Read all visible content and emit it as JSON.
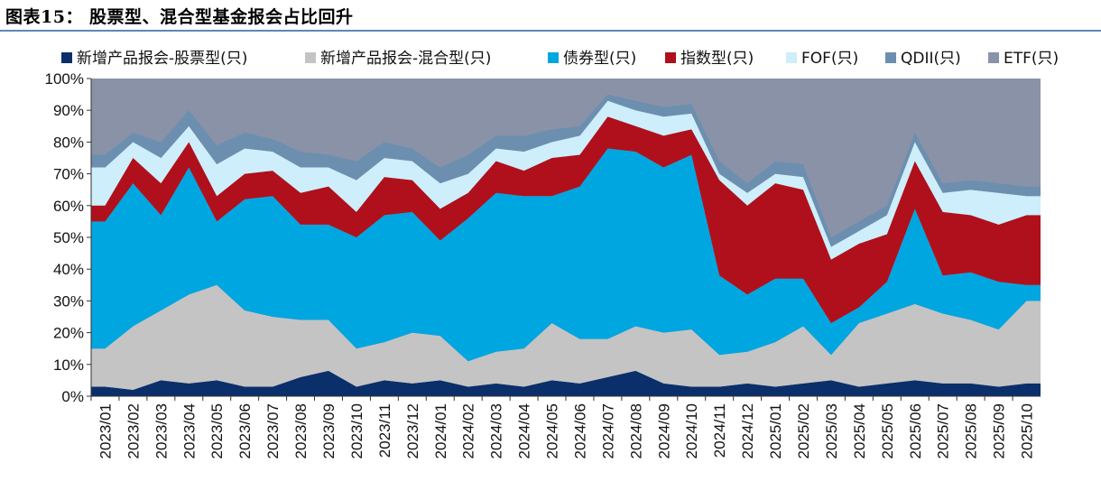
{
  "title": "图表15： 股票型、混合型基金报会占比回升",
  "chart_data": {
    "type": "area",
    "stacked": true,
    "percent": true,
    "title": "图表15： 股票型、混合型基金报会占比回升",
    "xlabel": "",
    "ylabel": "",
    "ylim": [
      0,
      100
    ],
    "yticks": [
      "0%",
      "10%",
      "20%",
      "30%",
      "40%",
      "50%",
      "60%",
      "70%",
      "80%",
      "90%",
      "100%"
    ],
    "month_labels": [
      "2023/01",
      "2023/02",
      "2023/03",
      "2023/04",
      "2023/05",
      "2023/06",
      "2023/07",
      "2023/08",
      "2023/09",
      "2023/10",
      "2023/11",
      "2023/12",
      "2024/01",
      "2024/02",
      "2024/03",
      "2024/04",
      "2024/05",
      "2024/06",
      "2024/07",
      "2024/08",
      "2024/09",
      "2024/10",
      "2024/11",
      "2024/12",
      "2025/01",
      "2025/02",
      "2025/03",
      "2025/04",
      "2025/05",
      "2025/06",
      "2025/07",
      "2025/08",
      "2025/09",
      "2025/10"
    ],
    "legend_position": "top",
    "colors": [
      "#0b2f6b",
      "#c4c4c4",
      "#00a6e0",
      "#b0101b",
      "#cdeefa",
      "#6c8fb0",
      "#8a92a8"
    ],
    "series": [
      {
        "name": "新增产品报会-股票型(只)",
        "values": [
          3,
          2,
          5,
          4,
          5,
          3,
          3,
          6,
          8,
          3,
          5,
          4,
          5,
          3,
          4,
          3,
          5,
          4,
          6,
          8,
          4,
          3,
          3,
          4,
          3,
          4,
          5,
          3,
          4,
          5,
          4,
          4,
          3,
          4
        ]
      },
      {
        "name": "新增产品报会-混合型(只)",
        "values": [
          12,
          20,
          22,
          28,
          30,
          24,
          22,
          18,
          16,
          12,
          12,
          16,
          14,
          8,
          10,
          12,
          18,
          14,
          12,
          14,
          16,
          18,
          10,
          10,
          14,
          18,
          8,
          20,
          22,
          24,
          22,
          20,
          18,
          26
        ]
      },
      {
        "name": "债券型(只)",
        "values": [
          40,
          45,
          30,
          40,
          20,
          35,
          38,
          30,
          30,
          35,
          40,
          38,
          30,
          45,
          50,
          48,
          40,
          48,
          60,
          55,
          52,
          55,
          25,
          18,
          20,
          15,
          10,
          5,
          10,
          30,
          12,
          15,
          15,
          5
        ]
      },
      {
        "name": "指数型(只)",
        "values": [
          5,
          8,
          10,
          8,
          8,
          8,
          8,
          10,
          12,
          8,
          12,
          10,
          10,
          8,
          10,
          8,
          12,
          10,
          10,
          8,
          10,
          8,
          30,
          28,
          30,
          28,
          20,
          20,
          15,
          15,
          20,
          18,
          18,
          22
        ]
      },
      {
        "name": "FOF(只)",
        "values": [
          12,
          5,
          8,
          5,
          10,
          8,
          6,
          8,
          6,
          10,
          6,
          6,
          8,
          6,
          4,
          6,
          5,
          6,
          5,
          5,
          6,
          5,
          2,
          4,
          3,
          4,
          4,
          4,
          6,
          6,
          6,
          8,
          10,
          6
        ]
      },
      {
        "name": "QDII(只)",
        "values": [
          4,
          3,
          5,
          5,
          6,
          5,
          4,
          5,
          4,
          6,
          5,
          4,
          5,
          6,
          4,
          5,
          4,
          3,
          2,
          3,
          3,
          3,
          4,
          3,
          4,
          4,
          3,
          3,
          3,
          3,
          3,
          3,
          3,
          3
        ]
      },
      {
        "name": "ETF(只)",
        "values": [
          24,
          17,
          20,
          10,
          21,
          17,
          19,
          23,
          24,
          26,
          20,
          22,
          28,
          24,
          18,
          18,
          16,
          15,
          5,
          7,
          9,
          8,
          26,
          33,
          26,
          27,
          50,
          45,
          40,
          17,
          33,
          32,
          33,
          34
        ]
      }
    ]
  }
}
